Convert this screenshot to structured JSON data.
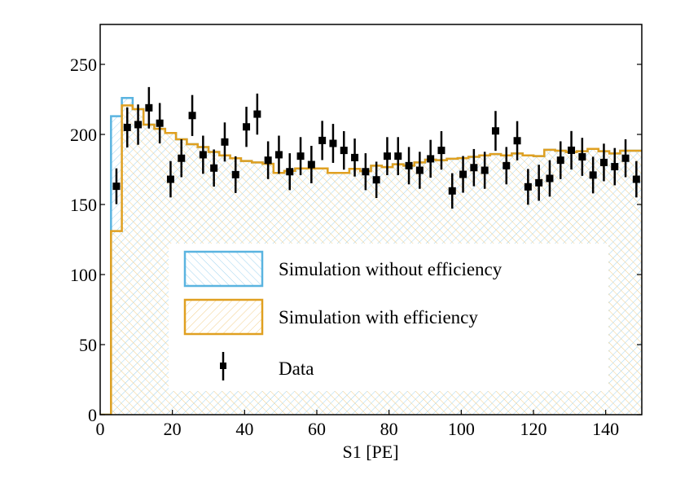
{
  "chart_data": {
    "type": "histogram-with-points",
    "title": "",
    "xlabel": "S1 [PE]",
    "ylabel": "",
    "xlim": [
      0,
      150
    ],
    "ylim": [
      0,
      275
    ],
    "xticks": [
      0,
      20,
      40,
      60,
      80,
      100,
      120,
      140
    ],
    "xtick_labels": [
      "0",
      "20",
      "40",
      "60",
      "80",
      "100",
      "120",
      "140"
    ],
    "yticks": [
      0,
      50,
      100,
      150,
      200,
      250
    ],
    "ytick_labels": [
      "0",
      "50",
      "100",
      "150",
      "200",
      "250"
    ],
    "grid": false,
    "legend": {
      "placement": "lower-center",
      "entries": [
        {
          "label": "Simulation without efficiency",
          "color": "#5ab4e0",
          "style": "hatched-box"
        },
        {
          "label": "Simulation with efficiency",
          "color": "#e0a020",
          "style": "hatched-box"
        },
        {
          "label": "Data",
          "color": "#000000",
          "style": "errorbar-marker"
        }
      ]
    },
    "bin_edges": [
      0,
      3,
      6,
      9,
      12,
      15,
      18,
      21,
      24,
      27,
      30,
      33,
      36,
      39,
      42,
      45,
      48,
      51,
      54,
      57,
      60,
      63,
      66,
      69,
      72,
      75,
      78,
      81,
      84,
      87,
      90,
      93,
      96,
      99,
      102,
      105,
      108,
      111,
      114,
      117,
      120,
      123,
      126,
      129,
      132,
      135,
      138,
      141,
      144,
      147,
      150
    ],
    "series": [
      {
        "name": "Simulation without efficiency",
        "type": "step-histogram",
        "color": "#5ab4e0",
        "values": [
          0,
          213,
          226,
          218,
          207,
          204,
          201,
          196.5,
          193,
          191,
          187.5,
          185,
          183,
          181,
          180,
          179,
          172.5,
          174,
          175.7,
          175.7,
          175.7,
          172.5,
          172.5,
          175.4,
          173.8,
          177.7,
          176.7,
          178.7,
          177.7,
          180,
          182,
          181.6,
          182.6,
          183.1,
          184,
          185,
          186,
          185,
          186.4,
          185,
          184.5,
          189,
          188.4,
          187.4,
          188,
          189.7,
          188,
          186.4,
          188.4,
          188.4
        ]
      },
      {
        "name": "Simulation with efficiency",
        "type": "step-histogram",
        "color": "#e0a020",
        "values": [
          0,
          131,
          220.7,
          218,
          207,
          204,
          201,
          196.5,
          193,
          191,
          187.5,
          185,
          183,
          181,
          180,
          179,
          172.5,
          174,
          175.7,
          175.7,
          175.7,
          172.5,
          172.5,
          175.4,
          173.8,
          177.7,
          176.7,
          178.7,
          177.7,
          180,
          182,
          181.6,
          182.6,
          183.1,
          184,
          185,
          186,
          185,
          186.4,
          185,
          184.5,
          189,
          188.4,
          187.4,
          188,
          189.7,
          188,
          186.4,
          188.4,
          188.4
        ]
      },
      {
        "name": "Data",
        "type": "errorbar",
        "color": "#000000",
        "x": [
          4.5,
          7.5,
          10.5,
          13.5,
          16.5,
          19.5,
          22.5,
          25.5,
          28.5,
          31.5,
          34.5,
          37.5,
          40.5,
          43.5,
          46.5,
          49.5,
          52.5,
          55.5,
          58.5,
          61.5,
          64.5,
          67.5,
          70.5,
          73.5,
          76.5,
          79.5,
          82.5,
          85.5,
          88.5,
          91.5,
          94.5,
          97.5,
          100.5,
          103.5,
          106.5,
          109.5,
          112.5,
          115.5,
          118.5,
          121.5,
          124.5,
          127.5,
          130.5,
          133.5,
          136.5,
          139.5,
          142.5,
          145.5,
          148.5
        ],
        "y": [
          163,
          205,
          207,
          219,
          208,
          168,
          183,
          213.5,
          185.5,
          176,
          194.6,
          171.3,
          205.4,
          214.5,
          181.6,
          185.5,
          173.4,
          184.5,
          178.5,
          195.7,
          193.6,
          188.6,
          183.5,
          173.4,
          167.6,
          184.5,
          184.5,
          177.7,
          174.4,
          182.6,
          188.6,
          159.7,
          171.5,
          176.3,
          174.4,
          202.5,
          177.7,
          195.5,
          162.6,
          165.5,
          168.6,
          181.6,
          188.7,
          184,
          171,
          180,
          177,
          183,
          168
        ],
        "yerr": "sqrt(y)"
      }
    ]
  }
}
